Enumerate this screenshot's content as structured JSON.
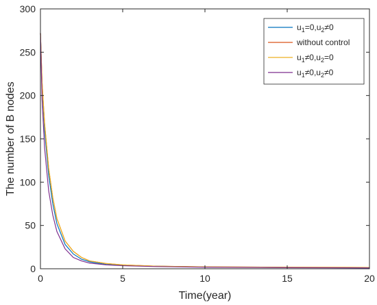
{
  "chart_data": {
    "type": "line",
    "title": "",
    "xlabel": "Time(year)",
    "ylabel": "The number of B nodes",
    "xlim": [
      0,
      20
    ],
    "ylim": [
      0,
      300
    ],
    "xticks": [
      0,
      5,
      10,
      15,
      20
    ],
    "yticks": [
      0,
      50,
      100,
      150,
      200,
      250,
      300
    ],
    "grid": false,
    "legend_position": "top-right",
    "series": [
      {
        "name": "u1=0,u2≠0",
        "name_parts": {
          "a": "u",
          "a_sub": "1",
          "b": "=0,u",
          "b_sub": "2",
          "c": "≠0"
        },
        "color": "#0072BD",
        "points": [
          [
            0,
            272
          ],
          [
            0.1,
            210
          ],
          [
            0.25,
            160
          ],
          [
            0.5,
            108
          ],
          [
            0.75,
            75
          ],
          [
            1,
            52
          ],
          [
            1.5,
            28
          ],
          [
            2,
            17
          ],
          [
            2.5,
            11
          ],
          [
            3,
            8
          ],
          [
            4,
            5
          ],
          [
            5,
            4
          ],
          [
            7,
            3
          ],
          [
            10,
            2
          ],
          [
            15,
            1.5
          ],
          [
            20,
            1
          ]
        ]
      },
      {
        "name": "without control",
        "color": "#D95319",
        "points": [
          [
            0,
            272
          ],
          [
            0.1,
            215
          ],
          [
            0.25,
            168
          ],
          [
            0.5,
            116
          ],
          [
            0.75,
            82
          ],
          [
            1,
            58
          ],
          [
            1.5,
            32
          ],
          [
            2,
            20
          ],
          [
            2.5,
            13
          ],
          [
            3,
            9
          ],
          [
            4,
            6
          ],
          [
            5,
            4.5
          ],
          [
            7,
            3
          ],
          [
            10,
            2.2
          ],
          [
            15,
            1.7
          ],
          [
            20,
            1.5
          ]
        ]
      },
      {
        "name": "u1≠0,u2=0",
        "name_parts": {
          "a": "u",
          "a_sub": "1",
          "b": "≠0,u",
          "b_sub": "2",
          "c": "=0"
        },
        "color": "#EDB120",
        "points": [
          [
            0,
            272
          ],
          [
            0.1,
            215
          ],
          [
            0.25,
            168
          ],
          [
            0.5,
            116
          ],
          [
            0.75,
            82
          ],
          [
            1,
            58
          ],
          [
            1.5,
            32
          ],
          [
            2,
            20
          ],
          [
            2.5,
            13
          ],
          [
            3,
            9
          ],
          [
            4,
            6
          ],
          [
            5,
            4.5
          ],
          [
            7,
            3
          ],
          [
            10,
            2.2
          ],
          [
            15,
            1.7
          ],
          [
            20,
            1.5
          ]
        ]
      },
      {
        "name": "u1≠0,u2≠0",
        "name_parts": {
          "a": "u",
          "a_sub": "1",
          "b": "≠0,u",
          "b_sub": "2",
          "c": "≠0"
        },
        "color": "#7E2F8E",
        "points": [
          [
            0,
            272
          ],
          [
            0.1,
            195
          ],
          [
            0.25,
            140
          ],
          [
            0.5,
            90
          ],
          [
            0.75,
            62
          ],
          [
            1,
            43
          ],
          [
            1.5,
            23
          ],
          [
            2,
            13
          ],
          [
            2.5,
            9
          ],
          [
            3,
            6.5
          ],
          [
            4,
            4.5
          ],
          [
            5,
            3.5
          ],
          [
            7,
            2.5
          ],
          [
            10,
            1.8
          ],
          [
            15,
            1.3
          ],
          [
            20,
            1
          ]
        ]
      }
    ]
  }
}
